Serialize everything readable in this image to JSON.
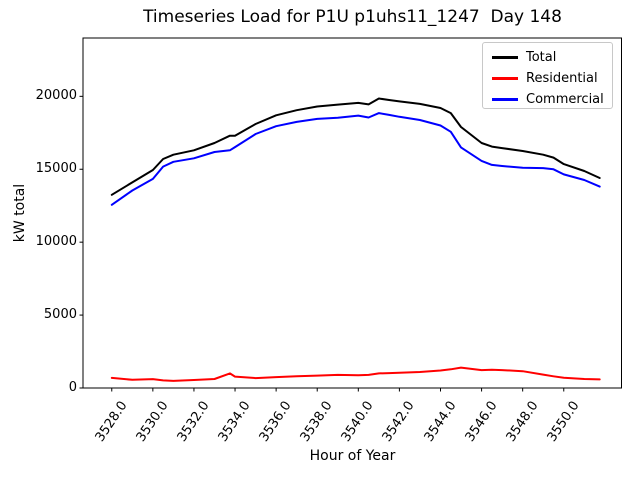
{
  "chart_data": {
    "type": "line",
    "title": "Timeseries Load for P1U p1uhs11_1247  Day 148",
    "xlabel": "Hour of Year",
    "ylabel": "kW total",
    "xlim": [
      3526.6,
      3552.82
    ],
    "ylim": [
      0,
      24000
    ],
    "grid": false,
    "xticks": {
      "values": [
        3528,
        3530,
        3532,
        3534,
        3536,
        3538,
        3540,
        3542,
        3544,
        3546,
        3548,
        3550
      ],
      "labels": [
        "3528.0",
        "3530.0",
        "3532.0",
        "3534.0",
        "3536.0",
        "3538.0",
        "3540.0",
        "3542.0",
        "3544.0",
        "3546.0",
        "3548.0",
        "3550.0"
      ]
    },
    "yticks": {
      "values": [
        0,
        5000,
        10000,
        15000,
        20000
      ],
      "labels": [
        "0",
        "5000",
        "10000",
        "15000",
        "20000"
      ]
    },
    "legend": {
      "position": "upper right",
      "entries": [
        "Total",
        "Residential",
        "Commercial"
      ]
    },
    "x": [
      3528,
      3529,
      3530,
      3530.5,
      3531,
      3532,
      3533,
      3533.75,
      3534,
      3535,
      3536,
      3537,
      3538,
      3539,
      3540,
      3540.5,
      3541,
      3541.5,
      3542,
      3543,
      3544,
      3544.5,
      3545,
      3546,
      3546.5,
      3547,
      3548,
      3549,
      3549.5,
      3550,
      3551,
      3551.75
    ],
    "series": [
      {
        "name": "Total",
        "color": "#000000",
        "values": [
          13250,
          14100,
          14950,
          15700,
          16000,
          16300,
          16800,
          17300,
          17300,
          18100,
          18700,
          19050,
          19300,
          19430,
          19550,
          19450,
          19850,
          19750,
          19650,
          19480,
          19200,
          18850,
          17900,
          16800,
          16550,
          16450,
          16250,
          16000,
          15800,
          15350,
          14880,
          14400
        ]
      },
      {
        "name": "Residential",
        "color": "#ff0000",
        "values": [
          690,
          560,
          610,
          520,
          490,
          550,
          620,
          1000,
          780,
          680,
          750,
          800,
          850,
          900,
          870,
          900,
          1000,
          1020,
          1050,
          1100,
          1200,
          1280,
          1400,
          1230,
          1250,
          1230,
          1150,
          920,
          800,
          700,
          620,
          590
        ]
      },
      {
        "name": "Commercial",
        "color": "#0000ff",
        "values": [
          12560,
          13540,
          14340,
          15180,
          15510,
          15750,
          16180,
          16300,
          16520,
          17420,
          17950,
          18250,
          18450,
          18530,
          18680,
          18550,
          18850,
          18730,
          18600,
          18380,
          18000,
          17570,
          16500,
          15570,
          15300,
          15220,
          15100,
          15080,
          15000,
          14650,
          14260,
          13810
        ]
      }
    ]
  }
}
